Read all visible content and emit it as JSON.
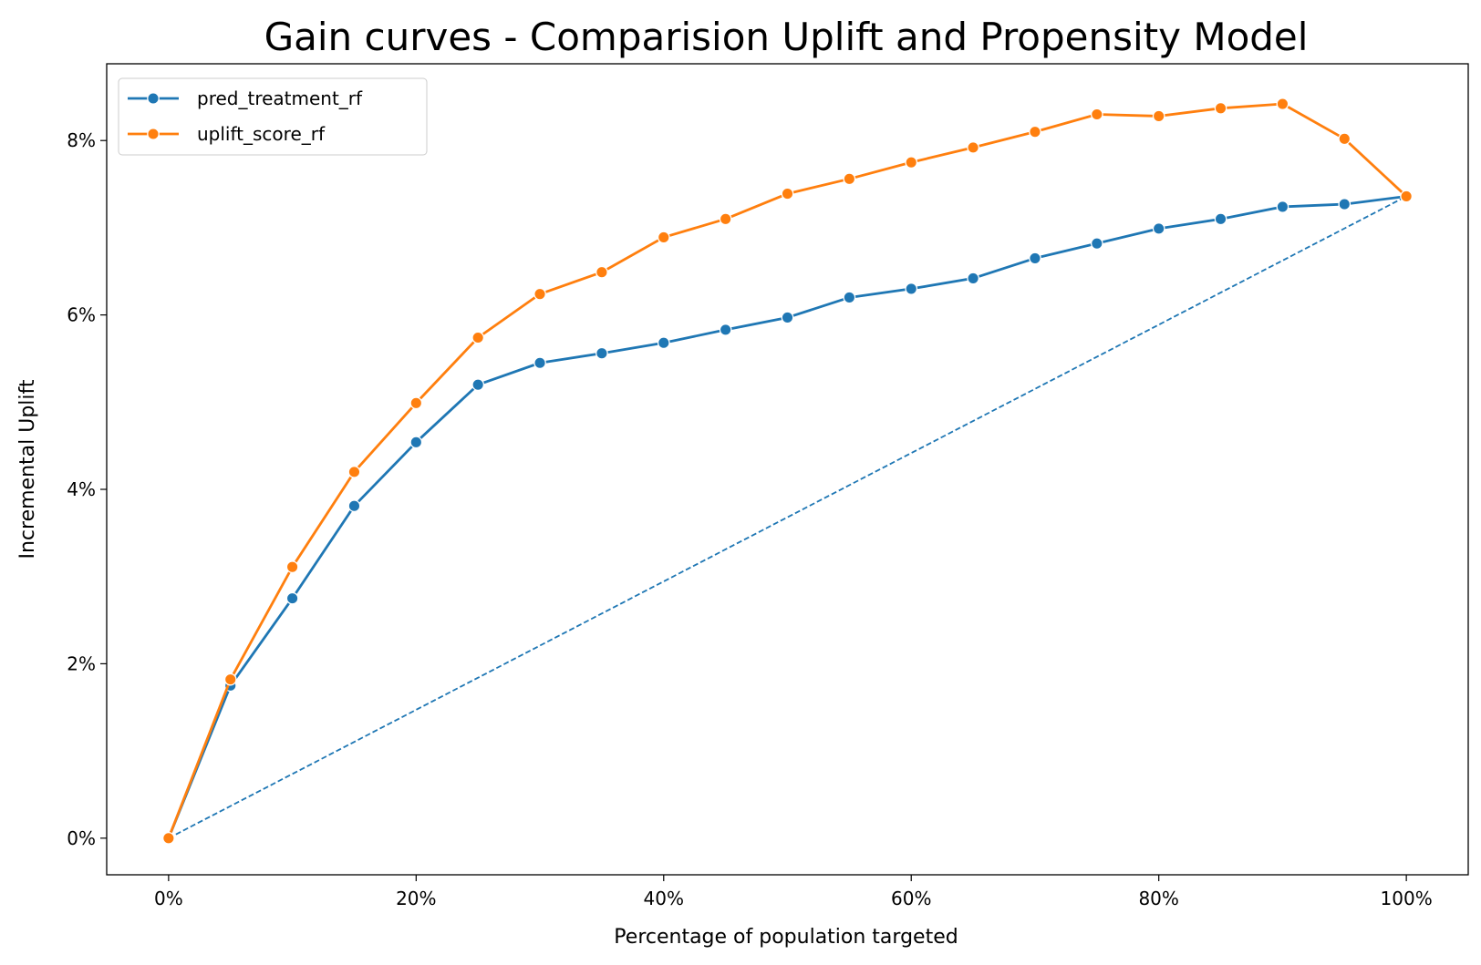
{
  "chart_data": {
    "type": "line",
    "title": "Gain curves - Comparision Uplift and Propensity Model",
    "xlabel": "Percentage of population targeted",
    "ylabel": "Incremental Uplift",
    "xlim": [
      -0.05,
      1.05
    ],
    "ylim": [
      -0.0042,
      0.0888
    ],
    "x_ticks": [
      0,
      0.2,
      0.4,
      0.6,
      0.8,
      1.0
    ],
    "x_tick_labels": [
      "0%",
      "20%",
      "40%",
      "60%",
      "80%",
      "100%"
    ],
    "y_ticks": [
      0,
      0.02,
      0.04,
      0.06,
      0.08
    ],
    "y_tick_labels": [
      "0%",
      "2%",
      "4%",
      "6%",
      "8%"
    ],
    "grid": false,
    "legend_position": "upper-left",
    "x": [
      0,
      0.05,
      0.1,
      0.15,
      0.2,
      0.25,
      0.3,
      0.35,
      0.4,
      0.45,
      0.5,
      0.55,
      0.6,
      0.65,
      0.7,
      0.75,
      0.8,
      0.85,
      0.9,
      0.95,
      1.0
    ],
    "series": [
      {
        "name": "pred_treatment_rf",
        "color": "#1f77b4",
        "marker": "circle",
        "values": [
          0,
          0.0175,
          0.0275,
          0.0381,
          0.0454,
          0.052,
          0.0545,
          0.0556,
          0.0568,
          0.0583,
          0.0597,
          0.062,
          0.063,
          0.0642,
          0.0665,
          0.0682,
          0.0699,
          0.071,
          0.0724,
          0.0727,
          0.0736
        ]
      },
      {
        "name": "uplift_score_rf",
        "color": "#ff7f0e",
        "marker": "circle",
        "values": [
          0,
          0.0182,
          0.0311,
          0.042,
          0.0499,
          0.0574,
          0.0624,
          0.0649,
          0.0689,
          0.071,
          0.0739,
          0.0756,
          0.0775,
          0.0792,
          0.081,
          0.083,
          0.0828,
          0.0837,
          0.0842,
          0.0802,
          0.0736
        ]
      }
    ],
    "reference_line": {
      "color": "#1f77b4",
      "style": "dashed",
      "x": [
        0,
        1.0
      ],
      "values": [
        0,
        0.0736
      ]
    }
  }
}
